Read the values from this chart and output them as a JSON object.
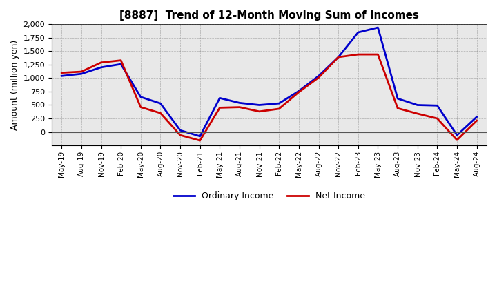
{
  "title": "[8887]  Trend of 12-Month Moving Sum of Incomes",
  "ylabel": "Amount (million yen)",
  "xlabels": [
    "May-19",
    "Aug-19",
    "Nov-19",
    "Feb-20",
    "May-20",
    "Aug-20",
    "Nov-20",
    "Feb-21",
    "May-21",
    "Aug-21",
    "Nov-21",
    "Feb-22",
    "May-22",
    "Aug-22",
    "Nov-22",
    "Feb-23",
    "May-23",
    "Aug-23",
    "Nov-23",
    "Feb-24",
    "May-24",
    "Aug-24"
  ],
  "ordinary_income": [
    1040,
    1080,
    1200,
    1260,
    650,
    530,
    30,
    -80,
    630,
    540,
    500,
    530,
    760,
    1040,
    1390,
    1850,
    1940,
    620,
    500,
    490,
    -60,
    280
  ],
  "net_income": [
    1100,
    1120,
    1290,
    1330,
    460,
    350,
    -60,
    -160,
    450,
    460,
    380,
    430,
    740,
    1010,
    1390,
    1440,
    1440,
    440,
    340,
    250,
    -150,
    210
  ],
  "ordinary_color": "#0000cc",
  "net_color": "#cc0000",
  "ylim": [
    -250,
    2000
  ],
  "yticks": [
    0,
    250,
    500,
    750,
    1000,
    1250,
    1500,
    1750,
    2000
  ],
  "plot_bg_color": "#e8e8e8",
  "fig_bg_color": "#ffffff",
  "grid_color": "#888888",
  "legend_ordinary": "Ordinary Income",
  "legend_net": "Net Income",
  "line_width": 2.0
}
